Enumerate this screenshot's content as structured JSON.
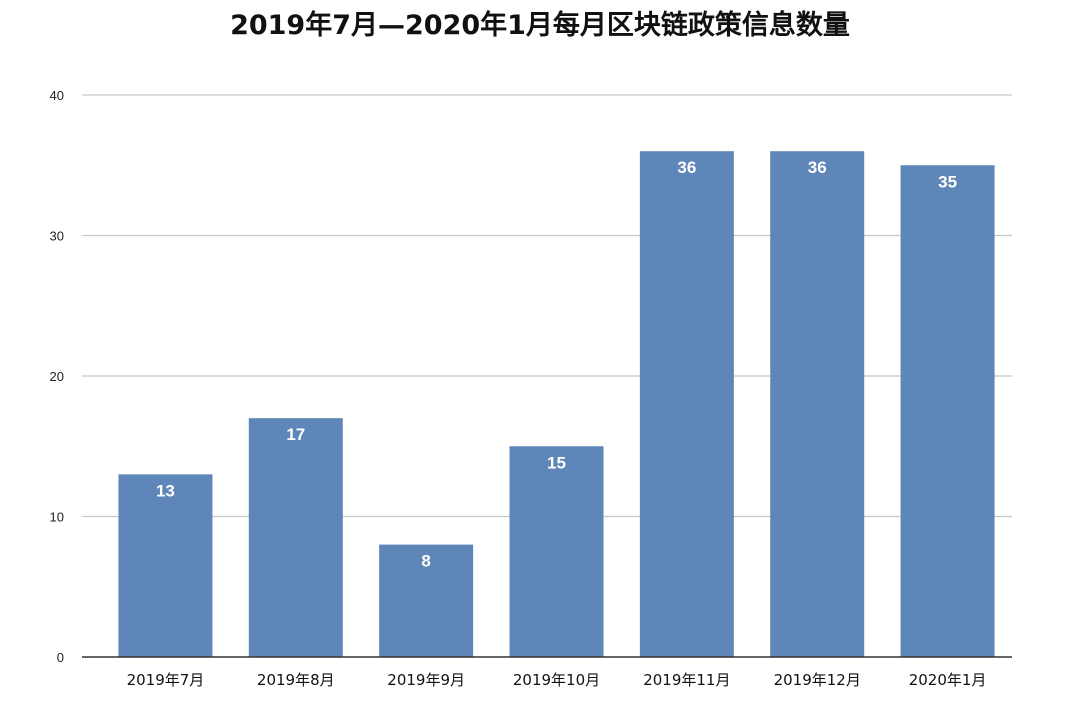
{
  "chart_data": {
    "type": "bar",
    "title": "2019年7月—2020年1月每月区块链政策信息数量",
    "categories": [
      "2019年7月",
      "2019年8月",
      "2019年9月",
      "2019年10月",
      "2019年11月",
      "2019年12月",
      "2020年1月"
    ],
    "values": [
      13,
      17,
      8,
      15,
      36,
      36,
      35
    ],
    "xlabel": "",
    "ylabel": "",
    "ylim": [
      0,
      40
    ],
    "yticks": [
      0,
      10,
      20,
      30,
      40
    ],
    "grid": true,
    "legend": "none",
    "bar_color": "#5f86b8",
    "grid_color": "#c8c8c8",
    "axis_color": "#333333",
    "data_label_color": "#ffffff"
  }
}
